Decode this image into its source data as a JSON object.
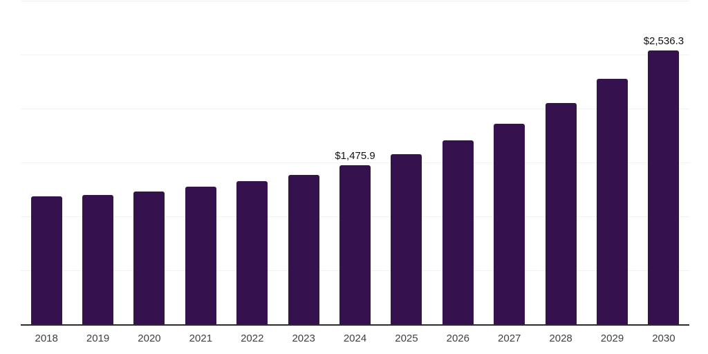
{
  "chart_data": {
    "type": "bar",
    "title": "",
    "xlabel": "",
    "ylabel": "",
    "categories": [
      "2018",
      "2019",
      "2020",
      "2021",
      "2022",
      "2023",
      "2024",
      "2025",
      "2026",
      "2027",
      "2028",
      "2029",
      "2030"
    ],
    "values": [
      1188,
      1201,
      1233,
      1275,
      1326,
      1383,
      1475.9,
      1575,
      1703,
      1862,
      2054,
      2275,
      2536.3
    ],
    "value_labels": {
      "2024": "$1,475.9",
      "2030": "$2,536.3"
    },
    "ylim": [
      0,
      3000
    ],
    "gridline_step": 500,
    "grid": "horizontal-only",
    "legend": "none",
    "colors": {
      "bar": "#35124d",
      "axis_line": "#2b2b2b",
      "gridline": "#f2f2f2",
      "value_label": "#111111",
      "tick_label": "#404040",
      "background": "#ffffff"
    }
  }
}
